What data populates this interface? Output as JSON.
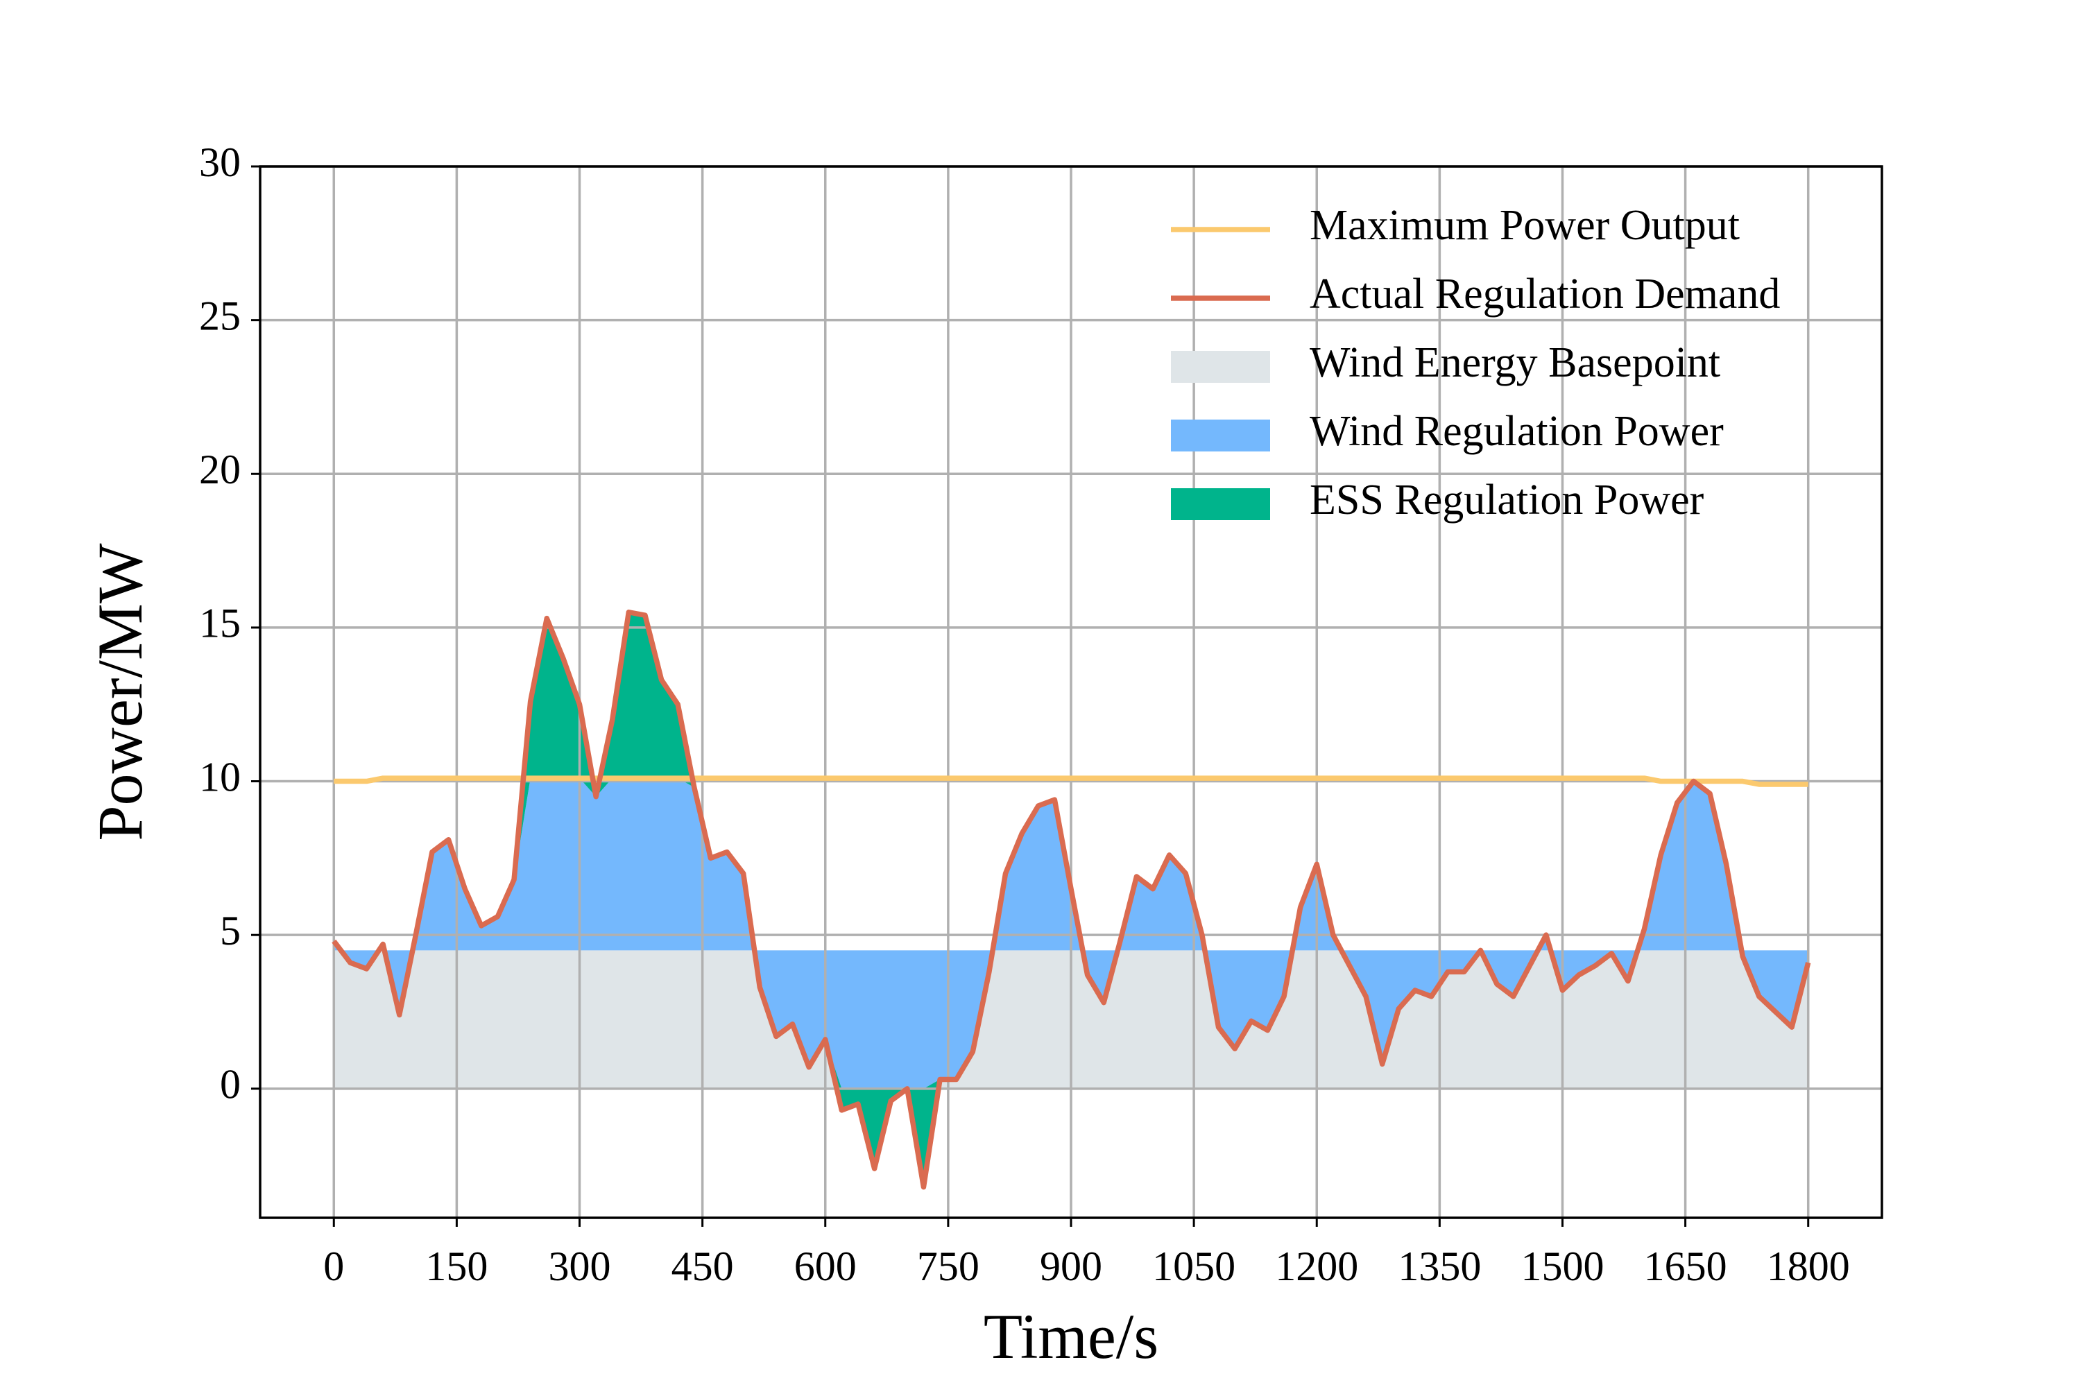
{
  "chart_data": {
    "type": "line",
    "xlabel": "Time/s",
    "ylabel": "Power/MW",
    "x": [
      0,
      20,
      40,
      60,
      80,
      100,
      120,
      140,
      160,
      180,
      200,
      220,
      240,
      260,
      280,
      300,
      320,
      340,
      360,
      380,
      400,
      420,
      440,
      460,
      480,
      500,
      520,
      540,
      560,
      580,
      600,
      620,
      640,
      660,
      680,
      700,
      720,
      740,
      760,
      780,
      800,
      820,
      840,
      860,
      880,
      900,
      920,
      940,
      960,
      980,
      1000,
      1020,
      1040,
      1060,
      1080,
      1100,
      1120,
      1140,
      1160,
      1180,
      1200,
      1220,
      1240,
      1260,
      1280,
      1300,
      1320,
      1340,
      1360,
      1380,
      1400,
      1420,
      1440,
      1460,
      1480,
      1500,
      1520,
      1540,
      1560,
      1580,
      1600,
      1620,
      1640,
      1660,
      1680,
      1700,
      1720,
      1740,
      1760,
      1780,
      1800
    ],
    "series": [
      {
        "name": "Maximum Power Output",
        "type": "line",
        "color": "#fbc96e",
        "values": [
          10.0,
          10.0,
          10.0,
          10.1,
          10.1,
          10.1,
          10.1,
          10.1,
          10.1,
          10.1,
          10.1,
          10.1,
          10.1,
          10.1,
          10.1,
          10.1,
          10.1,
          10.1,
          10.1,
          10.1,
          10.1,
          10.1,
          10.1,
          10.1,
          10.1,
          10.1,
          10.1,
          10.1,
          10.1,
          10.1,
          10.1,
          10.1,
          10.1,
          10.1,
          10.1,
          10.1,
          10.1,
          10.1,
          10.1,
          10.1,
          10.1,
          10.1,
          10.1,
          10.1,
          10.1,
          10.1,
          10.1,
          10.1,
          10.1,
          10.1,
          10.1,
          10.1,
          10.1,
          10.1,
          10.1,
          10.1,
          10.1,
          10.1,
          10.1,
          10.1,
          10.1,
          10.1,
          10.1,
          10.1,
          10.1,
          10.1,
          10.1,
          10.1,
          10.1,
          10.1,
          10.1,
          10.1,
          10.1,
          10.1,
          10.1,
          10.1,
          10.1,
          10.1,
          10.1,
          10.1,
          10.1,
          10.0,
          10.0,
          10.0,
          10.0,
          10.0,
          10.0,
          9.9,
          9.9,
          9.9,
          9.9
        ]
      },
      {
        "name": "Actual Regulation Demand",
        "type": "line",
        "color": "#da6b50",
        "values": [
          4.8,
          4.1,
          3.9,
          4.7,
          2.4,
          5.0,
          7.7,
          8.1,
          6.5,
          5.3,
          5.6,
          6.8,
          12.6,
          15.3,
          14.0,
          12.5,
          9.5,
          12.0,
          15.5,
          15.4,
          13.3,
          12.5,
          9.8,
          7.5,
          7.7,
          7.0,
          3.3,
          1.7,
          2.1,
          0.7,
          1.6,
          -0.7,
          -0.5,
          -2.6,
          -0.4,
          0,
          -3.2,
          0.3,
          0.3,
          1.2,
          3.8,
          7.0,
          8.3,
          9.2,
          9.4,
          6.5,
          3.7,
          2.8,
          4.8,
          6.9,
          6.5,
          7.6,
          7.0,
          5.0,
          2.0,
          1.3,
          2.2,
          1.9,
          3.0,
          5.9,
          7.3,
          5.0,
          4.0,
          3.0,
          0.8,
          2.6,
          3.2,
          3.0,
          3.8,
          3.8,
          4.5,
          3.4,
          3.0,
          4.0,
          5.0,
          3.2,
          3.7,
          4.0,
          4.4,
          3.5,
          5.2,
          7.6,
          9.3,
          10.0,
          9.6,
          7.3,
          4.3,
          3.0,
          2.5,
          2.0,
          4.1
        ]
      },
      {
        "name": "Wind Energy Basepoint",
        "type": "area",
        "color": "#dfe5e8",
        "values": [
          4.5,
          4.5,
          4.5,
          4.5,
          4.5,
          4.5,
          4.5,
          4.5,
          4.5,
          4.5,
          4.5,
          4.5,
          4.5,
          4.5,
          4.5,
          4.5,
          4.5,
          4.5,
          4.5,
          4.5,
          4.5,
          4.5,
          4.5,
          4.5,
          4.5,
          4.5,
          4.5,
          4.5,
          4.5,
          4.5,
          4.5,
          4.5,
          4.5,
          4.5,
          4.5,
          4.5,
          4.5,
          4.5,
          4.5,
          4.5,
          4.5,
          4.5,
          4.5,
          4.5,
          4.5,
          4.5,
          4.5,
          4.5,
          4.5,
          4.5,
          4.5,
          4.5,
          4.5,
          4.5,
          4.5,
          4.5,
          4.5,
          4.5,
          4.5,
          4.5,
          4.5,
          4.5,
          4.5,
          4.5,
          4.5,
          4.5,
          4.5,
          4.5,
          4.5,
          4.5,
          4.5,
          4.5,
          4.5,
          4.5,
          4.5,
          4.5,
          4.5,
          4.5,
          4.5,
          4.5,
          4.5,
          4.5,
          4.5,
          4.5,
          4.5,
          4.5,
          4.5,
          4.5,
          4.5,
          4.5,
          4.5
        ]
      },
      {
        "name": "Wind Regulation Power",
        "type": "area",
        "color": "#74b8fd",
        "values": [
          0.3,
          -0.4,
          -0.6,
          0.2,
          -2.1,
          0.5,
          3.2,
          3.6,
          2.0,
          0.8,
          1.1,
          2.3,
          5.6,
          5.6,
          5.6,
          5.6,
          5.0,
          5.6,
          5.6,
          5.6,
          5.6,
          5.6,
          5.3,
          3.0,
          3.2,
          2.5,
          -1.2,
          -2.8,
          -2.4,
          -3.8,
          -2.9,
          -4.5,
          -4.5,
          -4.5,
          -4.5,
          -4.5,
          -4.5,
          -4.2,
          -4.2,
          -3.3,
          -0.7,
          2.5,
          3.8,
          4.7,
          4.9,
          2.0,
          -0.8,
          -1.7,
          0.3,
          2.4,
          2.0,
          3.1,
          2.5,
          0.5,
          -2.5,
          -3.2,
          -2.3,
          -2.6,
          -1.5,
          1.4,
          2.8,
          0.5,
          -0.5,
          -1.5,
          -3.7,
          -1.9,
          -1.3,
          -1.5,
          -0.7,
          -0.7,
          0,
          -1.1,
          -1.5,
          -0.5,
          0.5,
          -1.3,
          -0.8,
          -0.5,
          -0.1,
          -1.0,
          0.7,
          3.1,
          4.8,
          5.5,
          5.1,
          2.8,
          -0.2,
          -1.5,
          -2.0,
          -2.5,
          -0.4
        ]
      },
      {
        "name": "ESS Regulation Power",
        "type": "area",
        "color": "#00b48c",
        "values": [
          0,
          0,
          0,
          0,
          0,
          0,
          0,
          0,
          0,
          0,
          0,
          0,
          2.5,
          5.2,
          3.9,
          2.4,
          0,
          1.9,
          5.4,
          5.3,
          3.2,
          2.4,
          0,
          0,
          0,
          0,
          0,
          0,
          0,
          0,
          0,
          -0.7,
          -0.5,
          -2.6,
          -0.4,
          0,
          -3.2,
          0,
          0,
          0,
          0,
          0,
          0,
          0,
          0,
          0,
          0,
          0,
          0,
          0,
          0,
          0,
          0,
          0,
          0,
          0,
          0,
          0,
          0,
          0,
          0,
          0,
          0,
          0,
          0,
          0,
          0,
          0,
          0,
          0,
          0,
          0,
          0,
          0,
          0,
          0,
          0,
          0,
          0,
          0,
          0,
          0,
          0,
          0,
          0,
          0,
          0,
          0,
          0,
          0,
          0
        ]
      }
    ],
    "xlim": [
      -90,
      1890
    ],
    "ylim": [
      -4.2,
      30
    ],
    "xticks": [
      0,
      150,
      300,
      450,
      600,
      750,
      900,
      1050,
      1200,
      1350,
      1500,
      1650,
      1800
    ],
    "yticks": [
      0,
      5,
      10,
      15,
      20,
      25,
      30
    ],
    "grid": true,
    "legend": "upper right"
  }
}
